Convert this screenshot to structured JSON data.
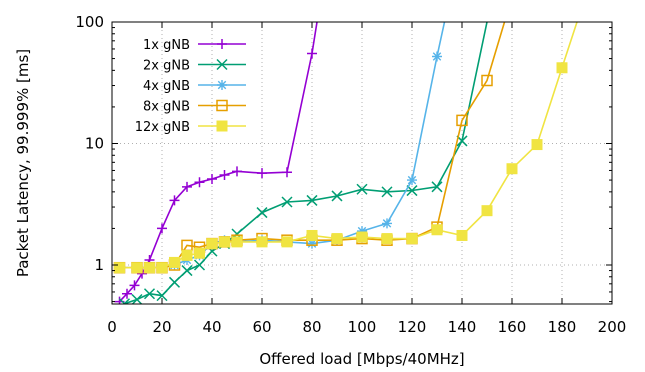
{
  "chart_data": {
    "type": "line",
    "xlabel": "Offered load [Mbps/40MHz]",
    "ylabel": "Packet Latency, 99.999% [ms]",
    "xlim": [
      0,
      200
    ],
    "ylim": [
      0.5,
      100
    ],
    "yscale": "log",
    "grid": true,
    "legend_position": "top-left",
    "x_ticks": [
      "0",
      "20",
      "40",
      "60",
      "80",
      "100",
      "120",
      "140",
      "160",
      "180",
      "200"
    ],
    "y_ticks": [
      "1",
      "10",
      "100"
    ],
    "series": [
      {
        "name": "1x gNB",
        "color": "#9400d3",
        "marker": "plus",
        "x": [
          3,
          6,
          9,
          12,
          15,
          20,
          25,
          30,
          35,
          40,
          45,
          50,
          60,
          70,
          80,
          82
        ],
        "y": [
          0.5,
          0.58,
          0.68,
          0.85,
          1.1,
          2.0,
          3.4,
          4.4,
          4.8,
          5.1,
          5.5,
          5.9,
          5.7,
          5.8,
          55,
          100
        ]
      },
      {
        "name": "2x gNB",
        "color": "#009e73",
        "marker": "x",
        "x": [
          5,
          10,
          15,
          20,
          25,
          30,
          35,
          40,
          45,
          50,
          60,
          70,
          80,
          90,
          100,
          110,
          120,
          130,
          140,
          150
        ],
        "y": [
          0.48,
          0.52,
          0.58,
          0.56,
          0.72,
          0.9,
          1.0,
          1.3,
          1.5,
          1.8,
          2.7,
          3.3,
          3.4,
          3.7,
          4.2,
          4.0,
          4.1,
          4.4,
          10.5,
          100
        ]
      },
      {
        "name": "4x gNB",
        "color": "#56b4e9",
        "marker": "star",
        "x": [
          3,
          10,
          15,
          20,
          25,
          30,
          35,
          40,
          45,
          50,
          60,
          70,
          80,
          90,
          100,
          110,
          120,
          130,
          133
        ],
        "y": [
          0.95,
          0.95,
          0.95,
          0.95,
          1.0,
          1.1,
          1.2,
          1.5,
          1.6,
          1.55,
          1.6,
          1.55,
          1.5,
          1.6,
          1.9,
          2.2,
          5.0,
          52,
          100
        ]
      },
      {
        "name": "8x gNB",
        "color": "#e69f00",
        "marker": "square-open",
        "x": [
          3,
          10,
          15,
          20,
          25,
          30,
          35,
          40,
          45,
          50,
          60,
          70,
          80,
          90,
          100,
          110,
          120,
          130,
          140,
          150,
          157
        ],
        "y": [
          0.95,
          0.95,
          0.95,
          0.95,
          1.0,
          1.45,
          1.4,
          1.5,
          1.55,
          1.6,
          1.65,
          1.6,
          1.6,
          1.6,
          1.65,
          1.6,
          1.65,
          2.05,
          15.5,
          33,
          100
        ]
      },
      {
        "name": "12x gNB",
        "color": "#f0e442",
        "marker": "square-filled",
        "x": [
          3,
          10,
          15,
          20,
          25,
          30,
          35,
          40,
          45,
          50,
          60,
          70,
          80,
          90,
          100,
          110,
          120,
          130,
          140,
          150,
          160,
          170,
          180,
          186
        ],
        "y": [
          0.95,
          0.95,
          0.95,
          0.95,
          1.05,
          1.2,
          1.25,
          1.5,
          1.55,
          1.55,
          1.55,
          1.55,
          1.75,
          1.65,
          1.7,
          1.65,
          1.65,
          1.95,
          1.75,
          2.8,
          6.2,
          9.8,
          42,
          100
        ]
      }
    ]
  }
}
